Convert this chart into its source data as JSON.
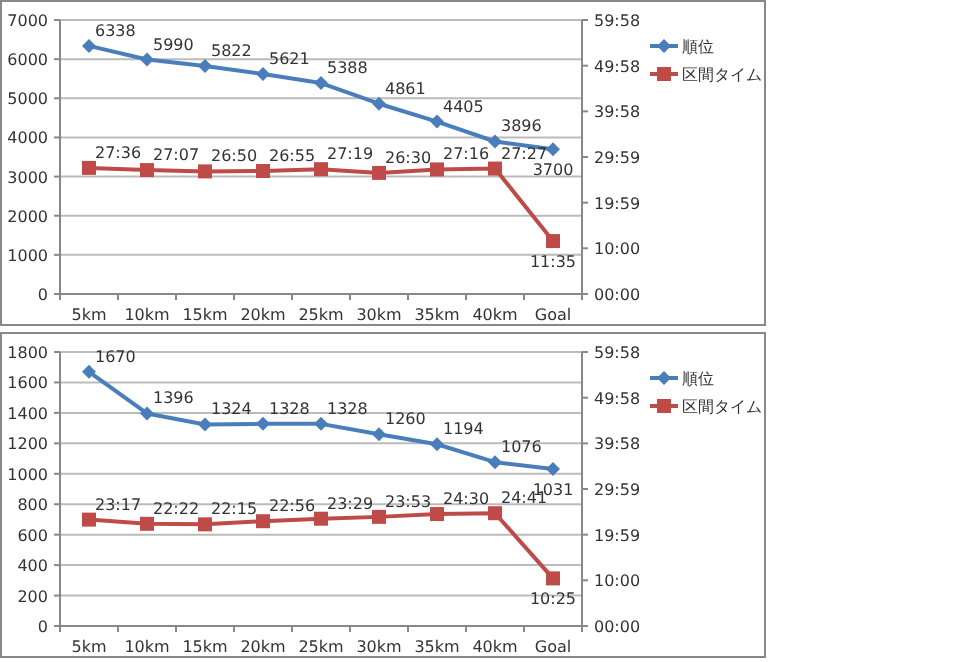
{
  "chart_data": [
    {
      "type": "line",
      "categories": [
        "5km",
        "10km",
        "15km",
        "20km",
        "25km",
        "30km",
        "35km",
        "40km",
        "Goal"
      ],
      "series": [
        {
          "name": "順位",
          "color": "#4a7ebb",
          "marker": "diamond",
          "values": [
            6338,
            5990,
            5822,
            5621,
            5388,
            4861,
            4405,
            3896,
            3700
          ]
        },
        {
          "name": "区間タイム",
          "color": "#be4b48",
          "marker": "square",
          "axis": "y2",
          "values": [
            27.6,
            27.117,
            26.833,
            26.917,
            27.317,
            26.5,
            27.267,
            27.45,
            11.583
          ],
          "value_labels": [
            "27:36",
            "27:07",
            "26:50",
            "26:55",
            "27:19",
            "26:30",
            "27:16",
            "27:27",
            "11:35"
          ]
        }
      ],
      "ylim": [
        0,
        7000
      ],
      "yticks": [
        0,
        1000,
        2000,
        3000,
        4000,
        5000,
        6000,
        7000
      ],
      "y2lim": [
        0,
        59.967
      ],
      "y2ticks": [
        {
          "value": 0,
          "label": "00:00"
        },
        {
          "value": 10,
          "label": "10:00"
        },
        {
          "value": 19.983,
          "label": "19:59"
        },
        {
          "value": 29.983,
          "label": "29:59"
        },
        {
          "value": 39.967,
          "label": "39:58"
        },
        {
          "value": 49.967,
          "label": "49:58"
        },
        {
          "value": 59.967,
          "label": "59:58"
        }
      ],
      "grid": "y",
      "legend": "right",
      "data_labels": true,
      "line_style": "solid"
    },
    {
      "type": "line",
      "categories": [
        "5km",
        "10km",
        "15km",
        "20km",
        "25km",
        "30km",
        "35km",
        "40km",
        "Goal"
      ],
      "series": [
        {
          "name": "順位",
          "color": "#4a7ebb",
          "marker": "diamond",
          "values": [
            1670,
            1396,
            1324,
            1328,
            1328,
            1260,
            1194,
            1076,
            1031
          ]
        },
        {
          "name": "区間タイム",
          "color": "#be4b48",
          "marker": "square",
          "axis": "y2",
          "values": [
            23.283,
            22.367,
            22.25,
            22.933,
            23.483,
            23.883,
            24.5,
            24.683,
            10.417
          ],
          "value_labels": [
            "23:17",
            "22:22",
            "22:15",
            "22:56",
            "23:29",
            "23:53",
            "24:30",
            "24:41",
            "10:25"
          ]
        }
      ],
      "ylim": [
        0,
        1800
      ],
      "yticks": [
        0,
        200,
        400,
        600,
        800,
        1000,
        1200,
        1400,
        1600,
        1800
      ],
      "y2lim": [
        0,
        59.967
      ],
      "y2ticks": [
        {
          "value": 0,
          "label": "00:00"
        },
        {
          "value": 10,
          "label": "10:00"
        },
        {
          "value": 19.983,
          "label": "19:59"
        },
        {
          "value": 29.983,
          "label": "29:59"
        },
        {
          "value": 39.967,
          "label": "39:58"
        },
        {
          "value": 49.967,
          "label": "49:58"
        },
        {
          "value": 59.967,
          "label": "59:58"
        }
      ],
      "grid": "y",
      "legend": "right",
      "data_labels": true,
      "line_style": "solid"
    }
  ]
}
